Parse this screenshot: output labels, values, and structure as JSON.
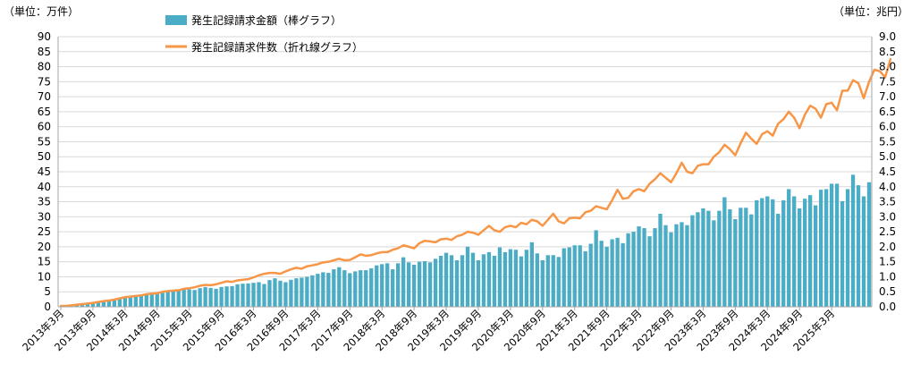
{
  "chart_data": {
    "type": "bar",
    "left_unit_label": "（単位：万件）",
    "right_unit_label": "（単位：兆円）",
    "y_left": {
      "min": 0,
      "max": 90,
      "step": 5
    },
    "y_right": {
      "min": 0.0,
      "max": 9.0,
      "step": 0.5
    },
    "legend": {
      "placement": "top-center",
      "bar_label": "発生記録請求金額（棒グラフ）",
      "line_label": "発生記録請求件数（折れ線グラフ）"
    },
    "colors": {
      "bar": "#4BACC6",
      "line": "#F79646",
      "grid": "#d9d9d9",
      "axis": "#a6a6a6"
    },
    "x_start": "2013-03",
    "x_labels": [
      "2013年3月",
      "2013年9月",
      "2014年3月",
      "2014年9月",
      "2015年3月",
      "2015年9月",
      "2016年3月",
      "2016年9月",
      "2017年3月",
      "2017年9月",
      "2018年3月",
      "2018年9月",
      "2019年3月",
      "2019年9月",
      "2020年3月",
      "2020年9月",
      "2021年3月",
      "2021年9月",
      "2022年3月",
      "2022年9月",
      "2023年3月",
      "2023年9月",
      "2024年3月",
      "2024年9月",
      "2025年3月"
    ],
    "series": [
      {
        "name": "発生記録請求金額（棒グラフ）",
        "axis": "right",
        "type": "bar",
        "values": [
          0.01,
          0.02,
          0.05,
          0.08,
          0.1,
          0.12,
          0.14,
          0.17,
          0.2,
          0.23,
          0.26,
          0.28,
          0.3,
          0.32,
          0.36,
          0.38,
          0.4,
          0.43,
          0.45,
          0.47,
          0.5,
          0.52,
          0.55,
          0.57,
          0.58,
          0.56,
          0.62,
          0.66,
          0.63,
          0.6,
          0.66,
          0.68,
          0.69,
          0.75,
          0.77,
          0.78,
          0.8,
          0.82,
          0.76,
          0.89,
          0.95,
          0.87,
          0.82,
          0.9,
          0.95,
          0.97,
          1.0,
          1.05,
          1.1,
          1.15,
          1.13,
          1.25,
          1.32,
          1.22,
          1.12,
          1.18,
          1.22,
          1.22,
          1.28,
          1.38,
          1.42,
          1.45,
          1.25,
          1.45,
          1.65,
          1.48,
          1.4,
          1.5,
          1.52,
          1.48,
          1.6,
          1.7,
          1.8,
          1.72,
          1.55,
          1.72,
          2.0,
          1.8,
          1.55,
          1.75,
          1.82,
          1.7,
          1.98,
          1.82,
          1.92,
          1.9,
          1.68,
          1.9,
          2.15,
          1.78,
          1.55,
          1.72,
          1.72,
          1.66,
          1.95,
          1.98,
          2.05,
          2.05,
          1.85,
          2.1,
          2.55,
          2.2,
          2.0,
          2.25,
          2.3,
          2.12,
          2.45,
          2.5,
          2.68,
          2.62,
          2.35,
          2.62,
          3.1,
          2.72,
          2.48,
          2.75,
          2.82,
          2.72,
          3.05,
          3.15,
          3.28,
          3.2,
          2.88,
          3.2,
          3.65,
          3.25,
          2.92,
          3.3,
          3.3,
          3.08,
          3.55,
          3.62,
          3.68,
          3.58,
          3.1,
          3.55,
          3.92,
          3.68,
          3.28,
          3.6,
          3.72,
          3.38,
          3.9,
          3.92,
          4.1,
          4.1,
          3.52,
          3.92,
          4.4,
          4.05,
          3.68,
          4.15
        ]
      },
      {
        "name": "発生記録請求件数（折れ線グラフ）",
        "axis": "left",
        "type": "line",
        "values": [
          0.3,
          0.3,
          0.5,
          0.7,
          0.9,
          1.1,
          1.3,
          1.6,
          1.9,
          2.1,
          2.4,
          2.8,
          3.2,
          3.4,
          3.6,
          3.8,
          4.2,
          4.4,
          4.5,
          5.0,
          5.2,
          5.4,
          5.5,
          6.0,
          6.2,
          6.5,
          7.0,
          7.3,
          7.2,
          7.5,
          8.0,
          8.5,
          8.3,
          8.8,
          9.0,
          9.2,
          9.8,
          10.5,
          11.0,
          11.3,
          11.3,
          11.0,
          11.8,
          12.5,
          13.0,
          12.7,
          13.5,
          13.8,
          14.2,
          14.8,
          15.0,
          15.5,
          16.0,
          15.5,
          15.6,
          16.5,
          17.5,
          17.0,
          17.2,
          17.8,
          18.2,
          18.2,
          19.0,
          19.5,
          20.5,
          20.0,
          19.5,
          21.2,
          22.0,
          21.8,
          21.5,
          22.5,
          22.7,
          22.3,
          23.5,
          24.0,
          25.0,
          24.7,
          24.0,
          25.5,
          27.0,
          25.5,
          25.0,
          26.5,
          27.0,
          26.5,
          28.0,
          27.5,
          29.0,
          28.5,
          27.0,
          29.0,
          31.0,
          28.5,
          27.8,
          29.5,
          29.7,
          29.5,
          31.5,
          32.0,
          33.5,
          33.0,
          32.5,
          35.5,
          39.0,
          36.0,
          36.3,
          38.5,
          39.2,
          38.5,
          41.0,
          42.5,
          44.5,
          43.0,
          41.5,
          44.5,
          48.0,
          45.0,
          44.5,
          47.0,
          47.5,
          47.5,
          50.0,
          51.5,
          54.0,
          52.5,
          50.5,
          54.5,
          58.0,
          56.0,
          54.3,
          57.5,
          58.5,
          57.0,
          61.0,
          62.5,
          65.0,
          63.0,
          59.5,
          64.0,
          67.0,
          66.0,
          63.0,
          67.5,
          68.0,
          65.5,
          72.0,
          72.0,
          75.5,
          74.5,
          69.5,
          75.0,
          79.0,
          78.5,
          76.5,
          82.5
        ]
      }
    ]
  }
}
